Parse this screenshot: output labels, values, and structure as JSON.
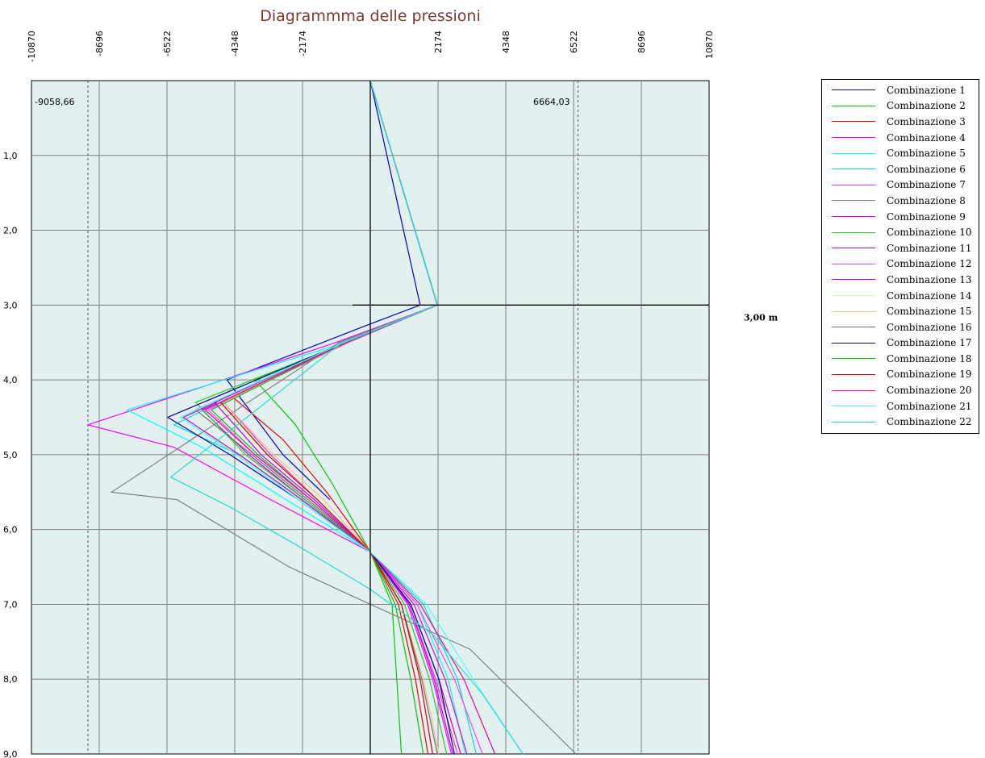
{
  "chart_data": {
    "type": "line",
    "title": "Diagrammma delle pressioni",
    "x_ticks": [
      -10870,
      -8696,
      -6522,
      -4348,
      -2174,
      0,
      2174,
      4348,
      6522,
      8696,
      10870
    ],
    "x_tick_labels": [
      "-10870",
      "-8696",
      "-6522",
      "-4348",
      "-2174",
      "",
      "2174",
      "4348",
      "6522",
      "8696",
      "10870"
    ],
    "xlim": [
      -10870,
      10870
    ],
    "y_ticks": [
      1,
      2,
      3,
      4,
      5,
      6,
      7,
      8,
      9
    ],
    "y_tick_labels": [
      "1,0",
      "2,0",
      "3,0",
      "4,0",
      "5,0",
      "6,0",
      "7,0",
      "8,0",
      "9,0"
    ],
    "ylim": [
      0,
      9
    ],
    "y_inverted": true,
    "grid": true,
    "background": "#e3f0f0",
    "extremes": {
      "min": {
        "value": -9058.66,
        "label": "-9058,66"
      },
      "max": {
        "value": 6664.03,
        "label": "6664,03"
      }
    },
    "level_line": {
      "y": 3.0,
      "label": "3,00 m"
    },
    "legend_position": "right",
    "series": [
      {
        "name": "Combinazione 1",
        "color": "#0000cc",
        "points": [
          [
            0,
            0
          ],
          [
            1600,
            3.0
          ],
          [
            -300,
            3.3
          ],
          [
            -4600,
            4.0
          ],
          [
            -2800,
            5.0
          ],
          [
            -1300,
            5.6
          ]
        ]
      },
      {
        "name": "Combinazione 2",
        "color": "#00cc00",
        "points": [
          [
            0,
            0
          ],
          [
            2150,
            3.0
          ],
          [
            -800,
            3.5
          ],
          [
            -3700,
            4.0
          ],
          [
            -2400,
            4.6
          ],
          [
            -1200,
            5.4
          ],
          [
            0,
            6.3
          ],
          [
            700,
            7.0
          ],
          [
            1000,
            9.0
          ]
        ]
      },
      {
        "name": "Combinazione 3",
        "color": "#ee0000",
        "points": [
          [
            0,
            0
          ],
          [
            2150,
            3.0
          ],
          [
            -800,
            3.5
          ],
          [
            -4500,
            4.2
          ],
          [
            -2800,
            4.8
          ],
          [
            -1400,
            5.5
          ],
          [
            0,
            6.3
          ],
          [
            900,
            7.0
          ],
          [
            1450,
            8.0
          ],
          [
            1850,
            9.0
          ]
        ]
      },
      {
        "name": "Combinazione 4",
        "color": "#ff00ff",
        "points": [
          [
            0,
            0
          ],
          [
            2150,
            3.0
          ],
          [
            -1100,
            3.5
          ],
          [
            -9058.66,
            4.6
          ],
          [
            -6300,
            4.9
          ],
          [
            -3200,
            5.6
          ],
          [
            0,
            6.3
          ],
          [
            1200,
            7.0
          ],
          [
            2000,
            8.0
          ],
          [
            2600,
            9.0
          ]
        ]
      },
      {
        "name": "Combinazione 5",
        "color": "#00ffff",
        "points": [
          [
            0,
            0
          ],
          [
            2150,
            3.0
          ],
          [
            -800,
            3.5
          ],
          [
            -7800,
            4.4
          ],
          [
            -5400,
            4.9
          ],
          [
            -2700,
            5.6
          ],
          [
            0,
            6.3
          ],
          [
            1500,
            7.0
          ],
          [
            2500,
            8.0
          ],
          [
            3050,
            9.0
          ]
        ]
      },
      {
        "name": "Combinazione 6",
        "color": "#00e0d0",
        "points": [
          [
            0,
            0
          ],
          [
            2150,
            3.0
          ],
          [
            -900,
            3.5
          ],
          [
            -6300,
            4.6
          ],
          [
            -4200,
            5.0
          ],
          [
            -2200,
            5.6
          ],
          [
            0,
            6.3
          ],
          [
            1700,
            7.0
          ],
          [
            2800,
            8.0
          ],
          [
            3400,
            9.0
          ]
        ]
      },
      {
        "name": "Combinazione 7",
        "color": "#ff33cc",
        "points": [
          [
            0,
            0
          ],
          [
            2150,
            3.0
          ],
          [
            -700,
            3.5
          ],
          [
            -4700,
            4.3
          ],
          [
            -3200,
            5.0
          ],
          [
            -1700,
            5.6
          ],
          [
            0,
            6.3
          ],
          [
            1250,
            7.0
          ],
          [
            2100,
            8.0
          ],
          [
            2800,
            9.0
          ]
        ]
      },
      {
        "name": "Combinazione 8",
        "color": "#808080",
        "points": [
          [
            0,
            0
          ],
          [
            2150,
            3.0
          ],
          [
            -1000,
            3.5
          ],
          [
            -8300,
            5.5
          ],
          [
            -6200,
            5.6
          ],
          [
            -2600,
            6.5
          ],
          [
            0,
            7.0
          ],
          [
            3200,
            7.6
          ],
          [
            6600,
            9.0
          ]
        ]
      },
      {
        "name": "Combinazione 9",
        "color": "#dd00dd",
        "points": [
          [
            0,
            0
          ],
          [
            2150,
            3.0
          ],
          [
            -800,
            3.5
          ],
          [
            -5400,
            4.4
          ],
          [
            -3900,
            5.0
          ],
          [
            -2100,
            5.6
          ],
          [
            0,
            6.3
          ],
          [
            1400,
            7.0
          ],
          [
            2400,
            8.0
          ],
          [
            3100,
            9.0
          ]
        ]
      },
      {
        "name": "Combinazione 10",
        "color": "#22cc22",
        "points": [
          [
            0,
            0
          ],
          [
            2150,
            3.0
          ],
          [
            -750,
            3.5
          ],
          [
            -5600,
            4.3
          ],
          [
            -4000,
            5.0
          ],
          [
            -2100,
            5.6
          ],
          [
            0,
            6.3
          ],
          [
            1100,
            7.0
          ],
          [
            1900,
            8.0
          ],
          [
            2450,
            9.0
          ]
        ]
      },
      {
        "name": "Combinazione 11",
        "color": "#cc00cc",
        "points": [
          [
            0,
            0
          ],
          [
            2150,
            3.0
          ],
          [
            -800,
            3.5
          ],
          [
            -6000,
            4.5
          ],
          [
            -4200,
            5.0
          ],
          [
            -2200,
            5.6
          ],
          [
            0,
            6.3
          ],
          [
            1300,
            7.0
          ],
          [
            2200,
            8.0
          ],
          [
            2900,
            9.0
          ]
        ]
      },
      {
        "name": "Combinazione 12",
        "color": "#ff44ee",
        "points": [
          [
            0,
            0
          ],
          [
            2150,
            3.0
          ],
          [
            -800,
            3.5
          ],
          [
            -5200,
            4.4
          ],
          [
            -3700,
            5.0
          ],
          [
            -1900,
            5.6
          ],
          [
            0,
            6.3
          ],
          [
            1500,
            7.0
          ],
          [
            2700,
            8.0
          ],
          [
            3600,
            9.0
          ]
        ]
      },
      {
        "name": "Combinazione 13",
        "color": "#bb00ff",
        "points": [
          [
            0,
            0
          ],
          [
            2150,
            3.0
          ],
          [
            -750,
            3.5
          ],
          [
            -5000,
            4.3
          ],
          [
            -3500,
            5.0
          ],
          [
            -1800,
            5.6
          ],
          [
            0,
            6.3
          ],
          [
            1250,
            7.0
          ],
          [
            2050,
            8.0
          ],
          [
            2650,
            9.0
          ]
        ]
      },
      {
        "name": "Combinazione 14",
        "color": "#ccffaa",
        "points": [
          [
            0,
            0
          ],
          [
            2150,
            3.0
          ],
          [
            -750,
            3.5
          ],
          [
            -4900,
            4.3
          ],
          [
            -3300,
            5.0
          ],
          [
            -1700,
            5.6
          ],
          [
            0,
            6.3
          ],
          [
            1000,
            7.0
          ],
          [
            1700,
            8.0
          ],
          [
            2200,
            9.0
          ]
        ]
      },
      {
        "name": "Combinazione 15",
        "color": "#ffbb88",
        "points": [
          [
            0,
            0
          ],
          [
            2150,
            3.0
          ],
          [
            -750,
            3.5
          ],
          [
            -4700,
            4.3
          ],
          [
            -3100,
            5.0
          ],
          [
            -1500,
            5.6
          ],
          [
            0,
            6.3
          ],
          [
            1000,
            7.0
          ],
          [
            1700,
            8.0
          ],
          [
            2200,
            9.0
          ]
        ]
      },
      {
        "name": "Combinazione 16",
        "color": "#707070",
        "points": [
          [
            0,
            0
          ],
          [
            2150,
            3.0
          ],
          [
            -750,
            3.5
          ],
          [
            -5600,
            4.4
          ],
          [
            -3800,
            5.0
          ],
          [
            -2000,
            5.6
          ],
          [
            0,
            6.3
          ],
          [
            1000,
            7.0
          ],
          [
            1650,
            8.0
          ],
          [
            2150,
            9.0
          ]
        ]
      },
      {
        "name": "Combinazione 17",
        "color": "#0000aa",
        "points": [
          [
            0,
            0
          ],
          [
            2150,
            3.0
          ],
          [
            -800,
            3.5
          ],
          [
            -6500,
            4.5
          ],
          [
            -4500,
            5.0
          ],
          [
            -2300,
            5.6
          ],
          [
            0,
            6.3
          ],
          [
            1300,
            7.0
          ],
          [
            2200,
            8.0
          ],
          [
            2700,
            9.0
          ]
        ],
        "dashed_tail": true
      },
      {
        "name": "Combinazione 18",
        "color": "#11bb11",
        "points": [
          [
            0,
            0
          ],
          [
            2150,
            3.0
          ],
          [
            -800,
            3.5
          ],
          [
            -5100,
            4.4
          ],
          [
            -3600,
            5.0
          ],
          [
            -1900,
            5.6
          ],
          [
            0,
            6.3
          ],
          [
            800,
            7.0
          ],
          [
            1300,
            8.0
          ],
          [
            1700,
            9.0
          ]
        ]
      },
      {
        "name": "Combinazione 19",
        "color": "#cc0000",
        "points": [
          [
            0,
            0
          ],
          [
            2150,
            3.0
          ],
          [
            -800,
            3.5
          ],
          [
            -4800,
            4.3
          ],
          [
            -3300,
            5.0
          ],
          [
            -1700,
            5.6
          ],
          [
            0,
            6.3
          ],
          [
            1000,
            7.0
          ],
          [
            1600,
            8.0
          ],
          [
            2000,
            9.0
          ]
        ]
      },
      {
        "name": "Combinazione 20",
        "color": "#ee00aa",
        "points": [
          [
            0,
            0
          ],
          [
            2150,
            3.0
          ],
          [
            -800,
            3.5
          ],
          [
            -5300,
            4.4
          ],
          [
            -3700,
            5.0
          ],
          [
            -1900,
            5.6
          ],
          [
            0,
            6.3
          ],
          [
            1600,
            7.0
          ],
          [
            3000,
            8.0
          ],
          [
            4000,
            9.0
          ]
        ]
      },
      {
        "name": "Combinazione 21",
        "color": "#44ffff",
        "points": [
          [
            0,
            0
          ],
          [
            2150,
            3.0
          ],
          [
            -850,
            3.5
          ],
          [
            -6100,
            4.5
          ],
          [
            -4300,
            5.0
          ],
          [
            -2300,
            5.6
          ],
          [
            0,
            6.3
          ],
          [
            1800,
            7.0
          ],
          [
            3300,
            8.0
          ],
          [
            4900,
            9.0
          ]
        ]
      },
      {
        "name": "Combinazione 22",
        "color": "#22ddcc",
        "points": [
          [
            0,
            0
          ],
          [
            2150,
            3.0
          ],
          [
            -900,
            3.5
          ],
          [
            -6400,
            5.3
          ],
          [
            -4500,
            5.7
          ],
          [
            -2400,
            6.2
          ],
          [
            0,
            6.8
          ],
          [
            2000,
            7.4
          ],
          [
            3600,
            8.2
          ],
          [
            4900,
            9.0
          ]
        ]
      }
    ]
  }
}
